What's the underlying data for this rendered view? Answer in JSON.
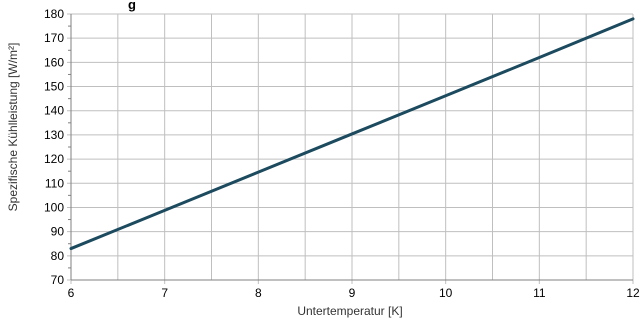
{
  "chart_data": {
    "type": "line",
    "title": "g",
    "xlabel": "Untertemperatur [K]",
    "ylabel": "Spezifische Kühlleistung [W/m²]",
    "xlim": [
      6,
      12
    ],
    "ylim": [
      70,
      180
    ],
    "x_ticks": [
      6,
      7,
      8,
      9,
      10,
      11,
      12
    ],
    "y_ticks": [
      70,
      80,
      90,
      100,
      110,
      120,
      130,
      140,
      150,
      160,
      170,
      180
    ],
    "grid": true,
    "series": [
      {
        "x": [
          6,
          7,
          8,
          9,
          10,
          11,
          12
        ],
        "y": [
          83,
          98.8,
          114.6,
          130.4,
          146.2,
          162,
          178
        ]
      }
    ],
    "colors": {
      "line": "#1c4a5e",
      "grid": "#bfbfbf",
      "axis": "#808080"
    }
  }
}
